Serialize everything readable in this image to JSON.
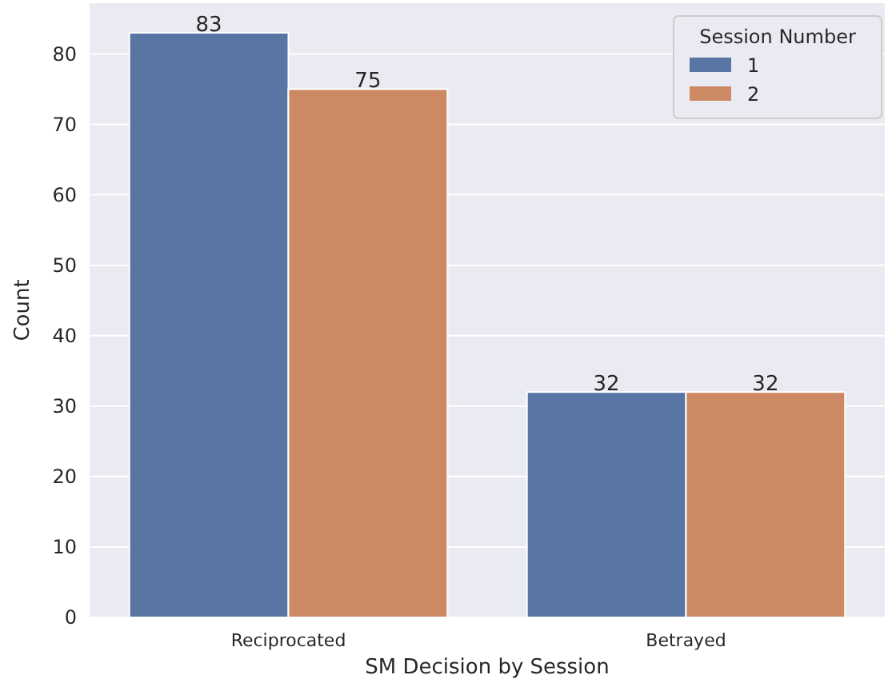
{
  "chart_data": {
    "type": "bar",
    "xlabel": "SM Decision by Session",
    "ylabel": "Count",
    "legend_title": "Session Number",
    "categories": [
      "Reciprocated",
      "Betrayed"
    ],
    "series": [
      {
        "name": "1",
        "color": "#5975a4",
        "values": [
          83,
          32
        ]
      },
      {
        "name": "2",
        "color": "#cc8963",
        "values": [
          75,
          32
        ]
      }
    ],
    "ylim": [
      0,
      87.2
    ],
    "yticks": [
      0,
      10,
      20,
      30,
      40,
      50,
      60,
      70,
      80
    ],
    "grid": "y",
    "legend": "top right",
    "data_labels": true
  }
}
